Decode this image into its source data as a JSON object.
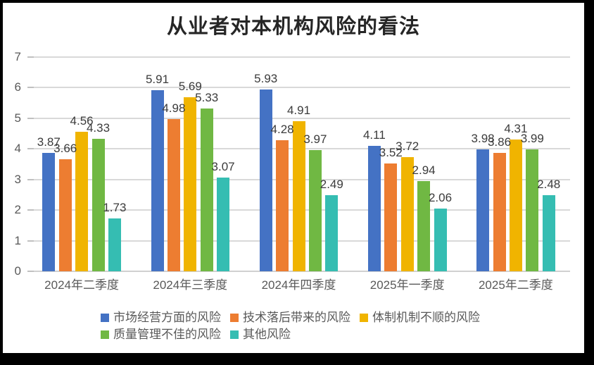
{
  "frame": {
    "border_color": "#000000",
    "background_color": "#ffffff"
  },
  "chart_data": {
    "type": "bar",
    "title": "从业者对本机构风险的看法",
    "categories": [
      "2024年二季度",
      "2024年三季度",
      "2024年四季度",
      "2025年一季度",
      "2025年二季度"
    ],
    "series": [
      {
        "name": "市场经营方面的风险",
        "color": "#4472C4",
        "values": [
          3.87,
          5.91,
          5.93,
          4.11,
          3.98
        ]
      },
      {
        "name": "技术落后带来的风险",
        "color": "#ED7D31",
        "values": [
          3.66,
          4.98,
          4.28,
          3.52,
          3.86
        ]
      },
      {
        "name": "体制机制不顺的风险",
        "color": "#F0B400",
        "values": [
          4.56,
          5.69,
          4.91,
          3.72,
          4.31
        ]
      },
      {
        "name": "质量管理不佳的风险",
        "color": "#70B843",
        "values": [
          4.33,
          5.33,
          3.97,
          2.94,
          3.99
        ]
      },
      {
        "name": "其他风险",
        "color": "#35BDB2",
        "values": [
          1.73,
          3.07,
          2.49,
          2.06,
          2.48
        ]
      }
    ],
    "y_axis": {
      "min": 0,
      "max": 7,
      "step": 1,
      "tick_labels": [
        "0",
        "1",
        "2",
        "3",
        "4",
        "5",
        "6",
        "7"
      ]
    },
    "grid": true,
    "data_labels": true,
    "legend_position": "bottom",
    "colors": {
      "gridline": "#d9d9d9",
      "axis_text": "#595959",
      "data_label_text": "#3b3b3b",
      "title_text": "#262626"
    }
  }
}
